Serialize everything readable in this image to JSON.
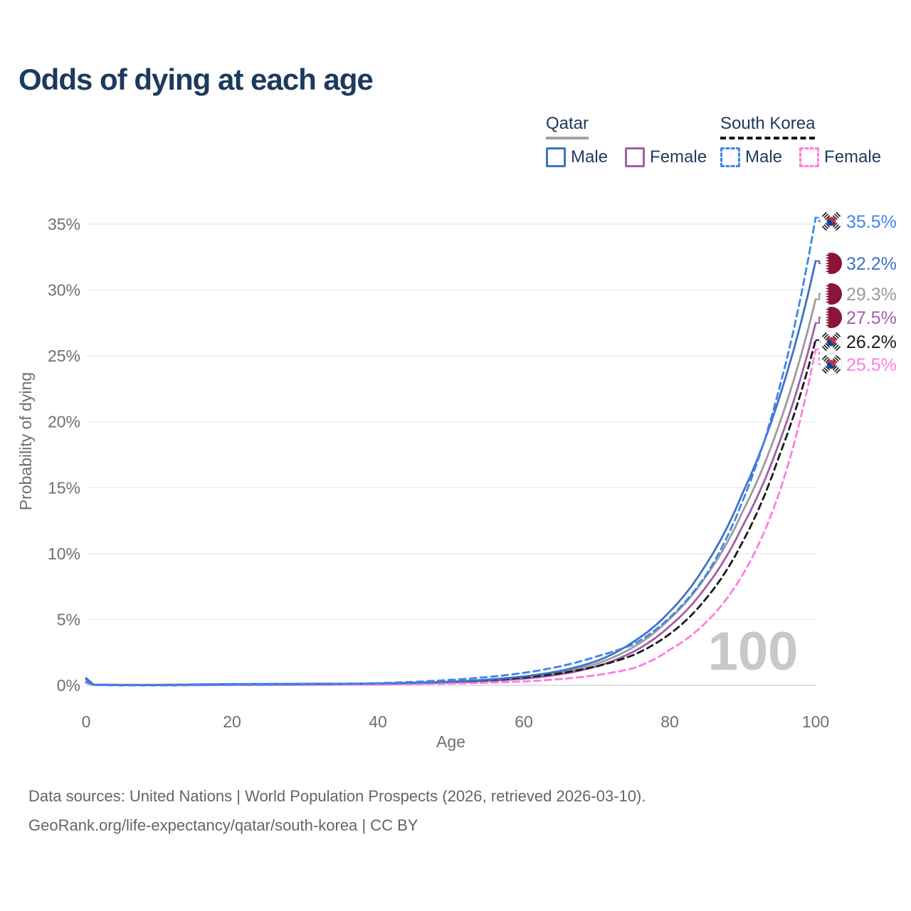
{
  "page": {
    "title": "Odds of dying at each age"
  },
  "legend": {
    "groups": [
      {
        "name": "Qatar",
        "line_style": "solid",
        "underline_color": "#a3a3a3",
        "items": [
          {
            "label": "Male",
            "color": "#3d73c4",
            "style": "solid"
          },
          {
            "label": "Female",
            "color": "#a05fa8",
            "style": "solid"
          }
        ]
      },
      {
        "name": "South Korea",
        "line_style": "dashed",
        "underline_color": "#111111",
        "items": [
          {
            "label": "Male",
            "color": "#3f85ee",
            "style": "dashed"
          },
          {
            "label": "Female",
            "color": "#ff7ce1",
            "style": "dashed"
          }
        ]
      }
    ]
  },
  "chart_data": {
    "type": "line",
    "title": "Odds of dying at each age",
    "xlabel": "Age",
    "ylabel": "Probability of dying",
    "xlim": [
      0,
      100
    ],
    "ylim_percent": [
      0,
      36.5
    ],
    "x_ticks": [
      0,
      20,
      40,
      60,
      80,
      100
    ],
    "y_ticks_percent": [
      0,
      5,
      10,
      15,
      20,
      25,
      30,
      35
    ],
    "y_tick_labels": [
      "0%",
      "5%",
      "10%",
      "15%",
      "20%",
      "25%",
      "30%",
      "35%"
    ],
    "grid": "horizontal-only",
    "hover_age_watermark": "100",
    "ages": [
      0,
      1,
      5,
      10,
      15,
      20,
      25,
      30,
      35,
      40,
      45,
      50,
      55,
      60,
      65,
      70,
      75,
      80,
      85,
      90,
      95,
      100
    ],
    "series": [
      {
        "id": "south-korea-male",
        "country": "South Korea",
        "sex": "Male",
        "flag": "south-korea",
        "color": "#3f85ee",
        "dashed": true,
        "end_label": "35.5%",
        "end_value_percent": 35.5,
        "values_percent": [
          0.25,
          0.04,
          0.01,
          0.01,
          0.03,
          0.06,
          0.07,
          0.08,
          0.11,
          0.17,
          0.27,
          0.42,
          0.63,
          0.95,
          1.45,
          2.2,
          3.1,
          5.15,
          8.4,
          14.0,
          22.5,
          35.5
        ]
      },
      {
        "id": "qatar-male",
        "country": "Qatar",
        "sex": "Male",
        "flag": "qatar",
        "color": "#3d73c4",
        "dashed": false,
        "end_label": "32.2%",
        "end_value_percent": 32.2,
        "values_percent": [
          0.55,
          0.06,
          0.04,
          0.04,
          0.07,
          0.1,
          0.11,
          0.12,
          0.13,
          0.15,
          0.2,
          0.28,
          0.44,
          0.68,
          1.1,
          1.85,
          3.3,
          5.6,
          9.2,
          14.6,
          21.8,
          32.2
        ]
      },
      {
        "id": "qatar-both-sexes",
        "country": "Qatar",
        "sex": "Both sexes",
        "flag": "qatar",
        "color": "#9c9c9c",
        "dashed": false,
        "end_label": "29.3%",
        "end_value_percent": 29.3,
        "values_percent": [
          0.5,
          0.055,
          0.035,
          0.035,
          0.06,
          0.08,
          0.09,
          0.1,
          0.11,
          0.13,
          0.18,
          0.25,
          0.39,
          0.6,
          0.98,
          1.65,
          2.9,
          5.05,
          8.3,
          13.2,
          19.8,
          29.3
        ]
      },
      {
        "id": "qatar-female",
        "country": "Qatar",
        "sex": "Female",
        "flag": "qatar",
        "color": "#a05fa8",
        "dashed": false,
        "end_label": "27.5%",
        "end_value_percent": 27.5,
        "values_percent": [
          0.45,
          0.05,
          0.03,
          0.03,
          0.04,
          0.05,
          0.06,
          0.07,
          0.08,
          0.11,
          0.15,
          0.21,
          0.33,
          0.51,
          0.84,
          1.45,
          2.55,
          4.5,
          7.5,
          12.1,
          18.4,
          27.5
        ]
      },
      {
        "id": "south-korea-both-sexes",
        "country": "South Korea",
        "sex": "Both sexes",
        "flag": "south-korea",
        "color": "#1b1b1b",
        "dashed": true,
        "end_label": "26.2%",
        "end_value_percent": 26.2,
        "values_percent": [
          0.22,
          0.03,
          0.01,
          0.01,
          0.02,
          0.04,
          0.045,
          0.05,
          0.07,
          0.11,
          0.17,
          0.26,
          0.4,
          0.6,
          0.92,
          1.45,
          2.3,
          3.9,
          6.6,
          10.9,
          17.4,
          26.2
        ]
      },
      {
        "id": "south-korea-female",
        "country": "South Korea",
        "sex": "Female",
        "flag": "south-korea",
        "color": "#ff7ce1",
        "dashed": true,
        "end_label": "25.5%",
        "end_value_percent": 25.5,
        "values_percent": [
          0.2,
          0.03,
          0.01,
          0.01,
          0.015,
          0.025,
          0.03,
          0.035,
          0.05,
          0.07,
          0.1,
          0.14,
          0.2,
          0.3,
          0.48,
          0.78,
          1.3,
          2.7,
          4.8,
          8.4,
          14.6,
          25.5
        ]
      }
    ]
  },
  "footer": {
    "line1": "Data sources: United Nations | World Population Prospects (2026, retrieved 2026-03-10).",
    "line2": "GeoRank.org/life-expectancy/qatar/south-korea | CC BY"
  },
  "colors": {
    "title": "#1c3a5c",
    "axis_text": "#6f6f6f",
    "gridline": "#ececec",
    "zero_line": "#d5d5d5",
    "watermark": "#c8c8c8",
    "qatar_maroon": "#8a1538",
    "korea_red": "#cd2e3a",
    "korea_blue": "#0047a0"
  }
}
